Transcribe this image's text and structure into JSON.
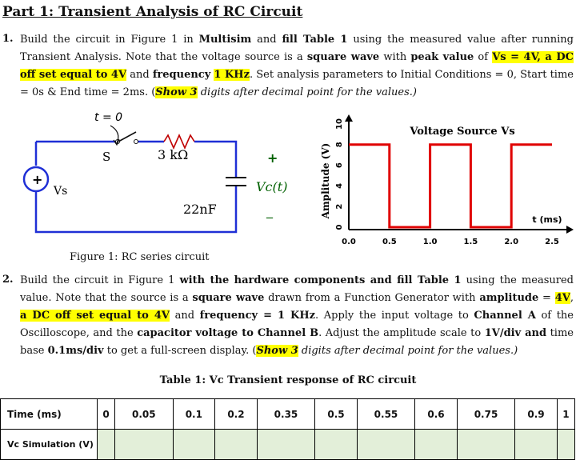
{
  "title": "Part 1: Transient Analysis of RC Circuit",
  "item1": {
    "number": "1.",
    "t1": "Build the circuit in Figure 1 in ",
    "b1": "Multisim",
    "t2": " and ",
    "b2": "fill Table 1",
    "t3": " using the measured value after running Transient Analysis. Note that the voltage source is a ",
    "b3": "square wave",
    "t4": " with ",
    "b4": "peak value",
    "t5": " of ",
    "h1": "Vs = 4V, a DC off set equal to 4V",
    "t6": " and ",
    "b5": "frequency",
    "t7": " ",
    "h2": "1 KHz",
    "t8": ". Set analysis parameters to Initial Conditions = 0, Start time = 0s & End time = 2ms. (",
    "h3": "Show 3",
    "t9": " digits after decimal point for the values.)"
  },
  "item2": {
    "number": "2.",
    "t1": "Build the circuit in Figure 1 ",
    "b1": "with the hardware components and fill Table 1",
    "t2": " using the measured value. Note that the source is a ",
    "b2": "square wave",
    "t3": " drawn from a Function Generator with ",
    "b3": "amplitude",
    "t4": " = ",
    "h1": "4V",
    "t5": ", ",
    "h2": "a DC off set equal to 4V",
    "t6": " and ",
    "b4": "frequency = 1 KHz",
    "t7": ". Apply the input voltage to ",
    "b5": "Channel A",
    "t8": " of the Oscilloscope, and the ",
    "b6": "capacitor voltage to Channel B",
    "t9": ". Adjust the amplitude scale to ",
    "b7": "1V/div and",
    "t10": " time base ",
    "b8": "0.1ms/div",
    "t11": " to get a full-screen display. (",
    "h3": "Show 3",
    "t12": " digits after decimal point for the values.)"
  },
  "circuit": {
    "switch_label": "t = 0",
    "switch_name": "S",
    "resistor": "3 kΩ",
    "source": "Vs",
    "capacitor": "22nF",
    "cap_voltage": "Vc(t)",
    "plus": "+",
    "minus": "_",
    "src_plus": "+"
  },
  "figure_caption": "Figure 1: RC series circuit",
  "chart_data": {
    "type": "line",
    "title": "Voltage Source Vs",
    "xlabel": "t (ms)",
    "ylabel": "Amplitude (V)",
    "xlim": [
      0,
      2.5
    ],
    "ylim": [
      0,
      10
    ],
    "xticks": [
      "0.0",
      "0.5",
      "1.0",
      "1.5",
      "2.0",
      "2.5"
    ],
    "yticks": [
      "0",
      "2",
      "4",
      "6",
      "8",
      "10"
    ],
    "x": [
      0,
      0.5,
      0.5,
      1.0,
      1.0,
      1.5,
      1.5,
      2.0,
      2.0,
      2.5
    ],
    "y": [
      8,
      8,
      0,
      0,
      8,
      8,
      0,
      0,
      8,
      8
    ],
    "color": "#e00000"
  },
  "table": {
    "caption": "Table 1: Vc Transient response of RC circuit",
    "row1_label": "Time (ms)",
    "row2_label": "Vc Simulation (V)",
    "times": [
      "0",
      "0.05",
      "0.1",
      "0.2",
      "0.35",
      "0.5",
      "0.55",
      "0.6",
      "0.75",
      "0.9",
      "1"
    ]
  }
}
